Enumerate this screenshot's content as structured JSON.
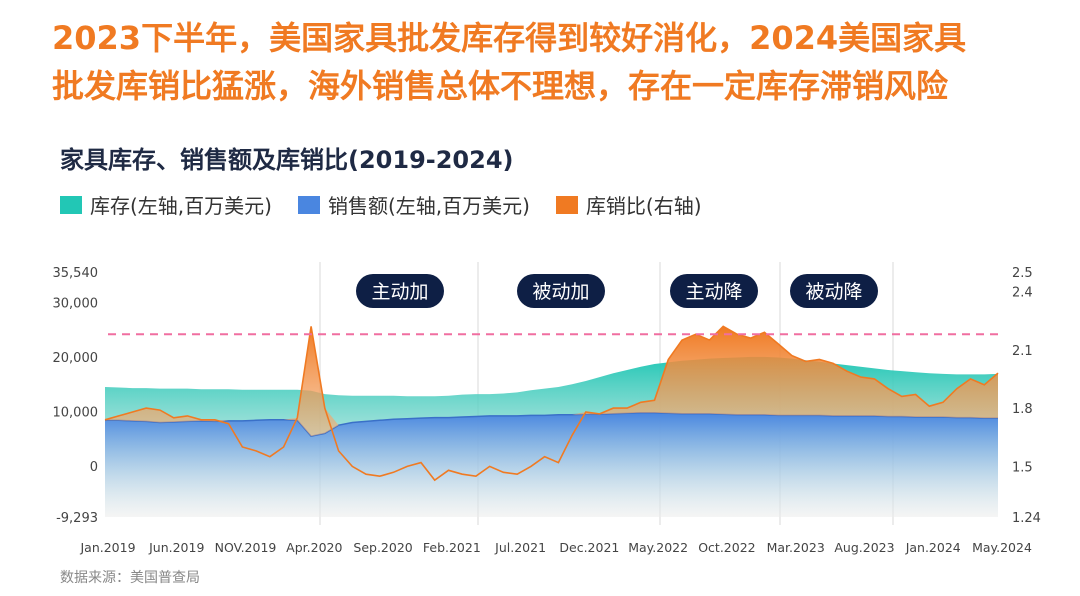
{
  "header": {
    "headline_line1": "2023下半年，美国家具批发库存得到较好消化，2024美国家具",
    "headline_line2": "批发库销比猛涨，海外销售总体不理想，存在一定库存滞销风险",
    "subtitle": "家具库存、销售额及库销比(2019-2024)",
    "source": "数据来源：美国普查局"
  },
  "colors": {
    "inventory": "#22c7b5",
    "sales": "#4a86e0",
    "ratio": "#f07a22",
    "title": "#f07a22",
    "dashed": "#f06ea0"
  },
  "chart_data": {
    "type": "area",
    "legend": [
      {
        "name": "库存(左轴,百万美元)",
        "color": "#22c7b5"
      },
      {
        "name": "销售额(左轴,百万美元)",
        "color": "#4a86e0"
      },
      {
        "name": "库销比(右轴)",
        "color": "#f07a22"
      }
    ],
    "x_ticks": [
      "Jan.2019",
      "Jun.2019",
      "NOV.2019",
      "Apr.2020",
      "Sep.2020",
      "Feb.2021",
      "Jul.2021",
      "Dec.2021",
      "May.2022",
      "Oct.2022",
      "Mar.2023",
      "Aug.2023",
      "Jan.2024",
      "May.2024"
    ],
    "y_left_ticks": [
      "35,540",
      "30,000",
      "20,000",
      "10,000",
      "0",
      "-9,293"
    ],
    "y_left_range": [
      -9293,
      35540
    ],
    "y_right_ticks": [
      "2.5",
      "2.4",
      "2.1",
      "1.8",
      "1.5",
      "1.24"
    ],
    "y_right_range": [
      1.24,
      2.5
    ],
    "phases": [
      "主动加",
      "被动加",
      "主动降",
      "被动降"
    ],
    "series": [
      {
        "name": "库存(左轴,百万美元)",
        "axis": "left",
        "values": [
          14500,
          14400,
          14300,
          14300,
          14200,
          14200,
          14200,
          14100,
          14100,
          14100,
          14000,
          14000,
          14000,
          14000,
          14000,
          13800,
          13200,
          13000,
          12900,
          12900,
          12900,
          12900,
          12800,
          12800,
          12800,
          12900,
          13100,
          13200,
          13200,
          13300,
          13500,
          13900,
          14200,
          14500,
          15000,
          15600,
          16300,
          17000,
          17600,
          18200,
          18700,
          19000,
          19300,
          19500,
          19700,
          19800,
          19900,
          20000,
          20000,
          19900,
          19700,
          19400,
          19100,
          18800,
          18500,
          18200,
          17900,
          17600,
          17400,
          17200,
          17000,
          16900,
          16800,
          16800,
          16800,
          16900
        ]
      },
      {
        "name": "销售额(左轴,百万美元)",
        "axis": "left",
        "values": [
          8400,
          8400,
          8300,
          8200,
          8000,
          8100,
          8200,
          8300,
          8200,
          8300,
          8300,
          8400,
          8500,
          8500,
          8400,
          5500,
          6000,
          7500,
          8000,
          8200,
          8400,
          8600,
          8700,
          8800,
          8900,
          8900,
          9000,
          9100,
          9200,
          9200,
          9200,
          9300,
          9300,
          9400,
          9400,
          9500,
          9500,
          9600,
          9700,
          9800,
          9800,
          9700,
          9600,
          9600,
          9600,
          9500,
          9400,
          9400,
          9400,
          9300,
          9300,
          9300,
          9300,
          9200,
          9200,
          9200,
          9200,
          9100,
          9100,
          9000,
          9000,
          9000,
          8900,
          8900,
          8800,
          8800
        ]
      },
      {
        "name": "库销比(右轴)",
        "axis": "right",
        "values": [
          1.74,
          1.76,
          1.78,
          1.8,
          1.79,
          1.75,
          1.76,
          1.74,
          1.74,
          1.72,
          1.6,
          1.58,
          1.55,
          1.6,
          1.75,
          2.22,
          1.8,
          1.58,
          1.5,
          1.46,
          1.45,
          1.47,
          1.5,
          1.52,
          1.43,
          1.48,
          1.46,
          1.45,
          1.5,
          1.47,
          1.46,
          1.5,
          1.55,
          1.52,
          1.66,
          1.78,
          1.77,
          1.8,
          1.8,
          1.83,
          1.84,
          2.05,
          2.15,
          2.18,
          2.15,
          2.22,
          2.18,
          2.16,
          2.19,
          2.13,
          2.07,
          2.04,
          2.05,
          2.03,
          1.99,
          1.96,
          1.95,
          1.9,
          1.86,
          1.87,
          1.81,
          1.83,
          1.9,
          1.95,
          1.92,
          1.98
        ]
      }
    ],
    "reference_line": {
      "axis": "right",
      "value": 2.18
    }
  }
}
